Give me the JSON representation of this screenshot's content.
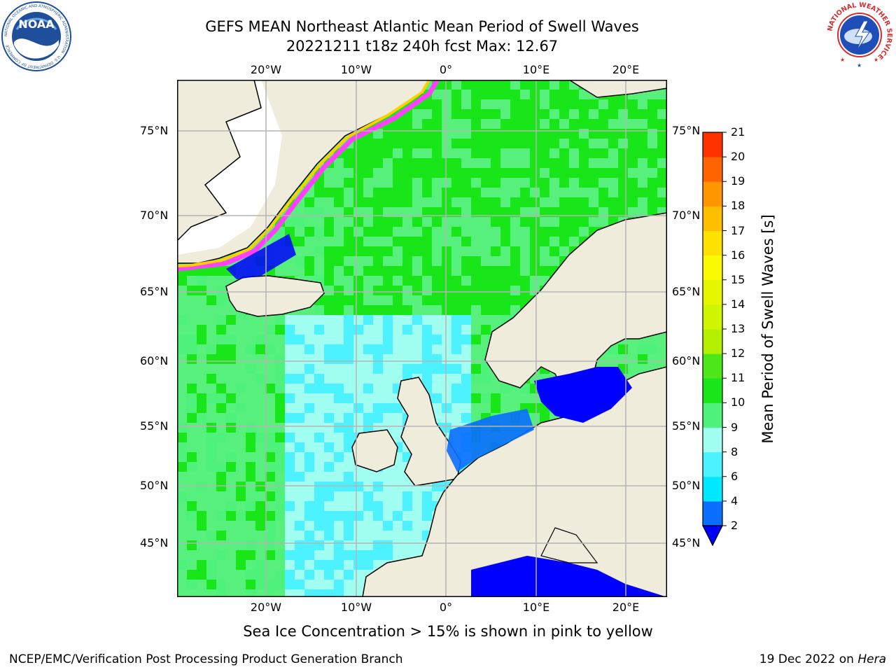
{
  "header": {
    "title_line1": "GEFS MEAN Northeast Atlantic Mean Period of Swell Waves",
    "title_line2": "20221211 t18z 240h fcst   Max: 12.67"
  },
  "logos": {
    "noaa": {
      "text": "NOAA",
      "ring_text": "NATIONAL OCEANIC AND ATMOSPHERIC ADMINISTRATION · U.S. DEPARTMENT OF COMMERCE",
      "color": "#1f4e9a"
    },
    "nws": {
      "ring_text": "NATIONAL WEATHER SERVICE",
      "color": "#d62c2c"
    }
  },
  "map": {
    "lon_labels_top": [
      "20°W",
      "10°W",
      "0°",
      "10°E",
      "20°E"
    ],
    "lon_labels_bottom": [
      "20°W",
      "10°W",
      "0°",
      "10°E",
      "20°E"
    ],
    "lat_labels_left": [
      "75°N",
      "70°N",
      "65°N",
      "60°N",
      "55°N",
      "50°N",
      "45°N"
    ],
    "lat_labels_right": [
      "75°N",
      "70°N",
      "65°N",
      "60°N",
      "55°N",
      "50°N",
      "45°N"
    ],
    "colors": {
      "land": "#efecdc",
      "ice_edge": "#ff40ff",
      "ice_inner": "#ffd000",
      "grid": "#b4b4b4"
    }
  },
  "colorbar": {
    "label": "Mean Period of Swell Waves [s]",
    "ticks": [
      "2",
      "4",
      "6",
      "8",
      "9",
      "10",
      "11",
      "12",
      "13",
      "14",
      "15",
      "16",
      "17",
      "18",
      "19",
      "20",
      "21"
    ],
    "colors": [
      "#0a6eff",
      "#00e8ff",
      "#4cf2ff",
      "#a0fff0",
      "#4ef27a",
      "#19e619",
      "#4ce619",
      "#b4f000",
      "#d0f500",
      "#e6f500",
      "#fafa00",
      "#ffe100",
      "#ffbe00",
      "#ff9600",
      "#ff6400",
      "#ff3200"
    ],
    "under_color": "#0000ff",
    "top_color": "#ff0000"
  },
  "caption": "Sea Ice Concentration > 15% is shown in pink to yellow",
  "footer": {
    "left": "NCEP/EMC/Verification Post Processing Product Generation Branch",
    "right_prefix": "19 Dec 2022 on ",
    "right_host": "Hera"
  }
}
